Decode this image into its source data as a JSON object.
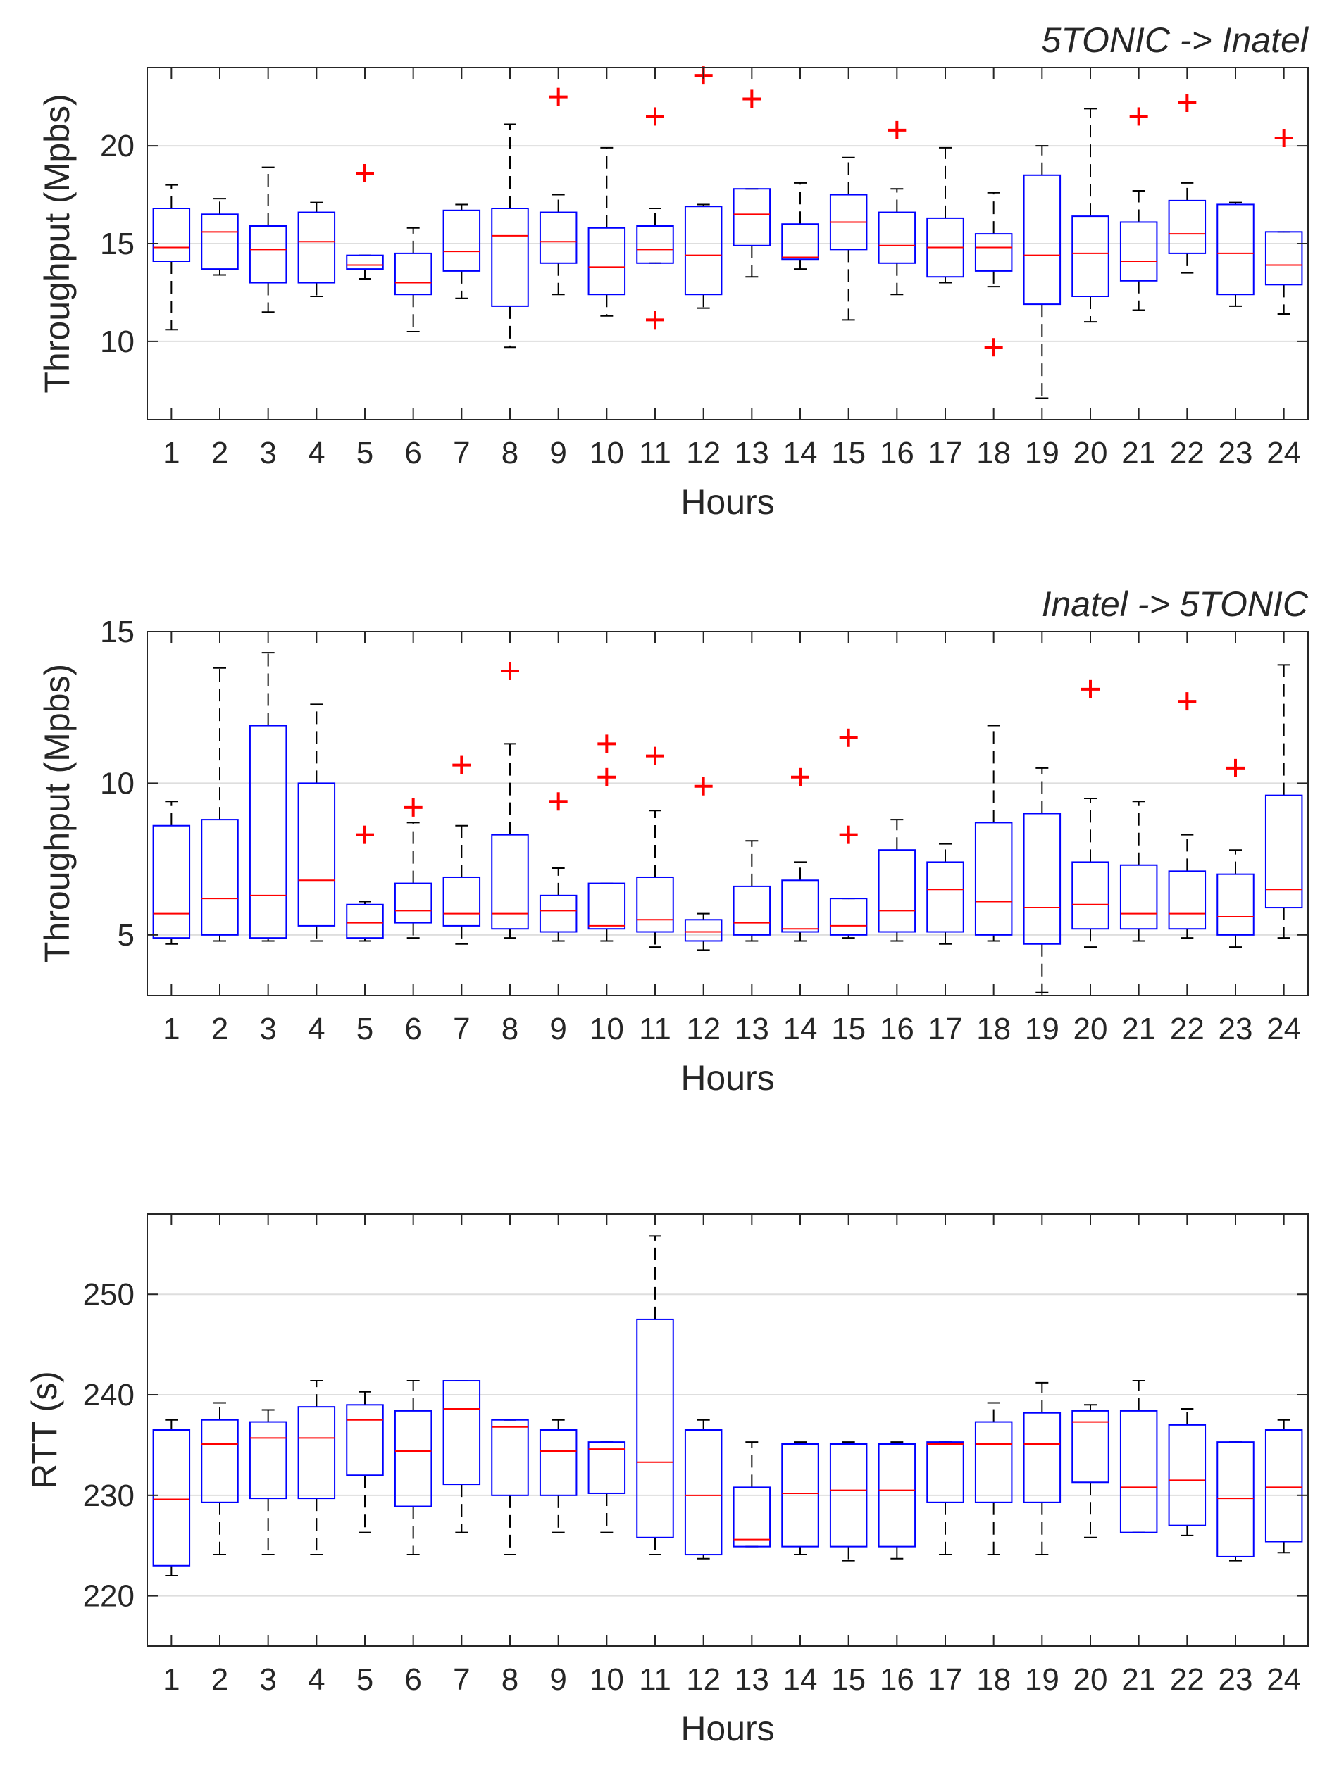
{
  "chart_data": [
    {
      "type": "box",
      "title": "5TONIC -> Inatel",
      "xlabel": "Hours",
      "ylabel": "Throughput (Mpbs)",
      "ylim": [
        6,
        24
      ],
      "yticks": [
        10,
        15,
        20
      ],
      "grid": true,
      "categories": [
        "1",
        "2",
        "3",
        "4",
        "5",
        "6",
        "7",
        "8",
        "9",
        "10",
        "11",
        "12",
        "13",
        "14",
        "15",
        "16",
        "17",
        "18",
        "19",
        "20",
        "21",
        "22",
        "23",
        "24"
      ],
      "boxes": [
        {
          "q1": 14.1,
          "median": 14.8,
          "q3": 16.8,
          "whisker_low": 10.6,
          "whisker_high": 18.0,
          "outliers": []
        },
        {
          "q1": 13.7,
          "median": 15.6,
          "q3": 16.5,
          "whisker_low": 13.4,
          "whisker_high": 17.3,
          "outliers": []
        },
        {
          "q1": 13.0,
          "median": 14.7,
          "q3": 15.9,
          "whisker_low": 11.5,
          "whisker_high": 18.9,
          "outliers": []
        },
        {
          "q1": 13.0,
          "median": 15.1,
          "q3": 16.6,
          "whisker_low": 12.3,
          "whisker_high": 17.1,
          "outliers": []
        },
        {
          "q1": 13.7,
          "median": 13.9,
          "q3": 14.4,
          "whisker_low": 13.2,
          "whisker_high": 14.4,
          "outliers": [
            18.6
          ]
        },
        {
          "q1": 12.4,
          "median": 13.0,
          "q3": 14.5,
          "whisker_low": 10.5,
          "whisker_high": 15.8,
          "outliers": []
        },
        {
          "q1": 13.6,
          "median": 14.6,
          "q3": 16.7,
          "whisker_low": 12.2,
          "whisker_high": 17.0,
          "outliers": []
        },
        {
          "q1": 11.8,
          "median": 15.4,
          "q3": 16.8,
          "whisker_low": 9.7,
          "whisker_high": 21.1,
          "outliers": []
        },
        {
          "q1": 14.0,
          "median": 15.1,
          "q3": 16.6,
          "whisker_low": 12.4,
          "whisker_high": 17.5,
          "outliers": [
            22.5
          ]
        },
        {
          "q1": 12.4,
          "median": 13.8,
          "q3": 15.8,
          "whisker_low": 11.3,
          "whisker_high": 19.9,
          "outliers": []
        },
        {
          "q1": 14.0,
          "median": 14.7,
          "q3": 15.9,
          "whisker_low": 14.0,
          "whisker_high": 16.8,
          "outliers": [
            21.5,
            11.1
          ]
        },
        {
          "q1": 12.4,
          "median": 14.4,
          "q3": 16.9,
          "whisker_low": 11.7,
          "whisker_high": 17.0,
          "outliers": [
            23.6
          ]
        },
        {
          "q1": 14.9,
          "median": 16.5,
          "q3": 17.8,
          "whisker_low": 13.3,
          "whisker_high": 17.8,
          "outliers": [
            22.4
          ]
        },
        {
          "q1": 14.2,
          "median": 14.3,
          "q3": 16.0,
          "whisker_low": 13.7,
          "whisker_high": 18.1,
          "outliers": []
        },
        {
          "q1": 14.7,
          "median": 16.1,
          "q3": 17.5,
          "whisker_low": 11.1,
          "whisker_high": 19.4,
          "outliers": []
        },
        {
          "q1": 14.0,
          "median": 14.9,
          "q3": 16.6,
          "whisker_low": 12.4,
          "whisker_high": 17.8,
          "outliers": [
            20.8
          ]
        },
        {
          "q1": 13.3,
          "median": 14.8,
          "q3": 16.3,
          "whisker_low": 13.0,
          "whisker_high": 19.9,
          "outliers": []
        },
        {
          "q1": 13.6,
          "median": 14.8,
          "q3": 15.5,
          "whisker_low": 12.8,
          "whisker_high": 17.6,
          "outliers": [
            9.7
          ]
        },
        {
          "q1": 11.9,
          "median": 14.4,
          "q3": 18.5,
          "whisker_low": 7.1,
          "whisker_high": 20.0,
          "outliers": []
        },
        {
          "q1": 12.3,
          "median": 14.5,
          "q3": 16.4,
          "whisker_low": 11.0,
          "whisker_high": 21.9,
          "outliers": []
        },
        {
          "q1": 13.1,
          "median": 14.1,
          "q3": 16.1,
          "whisker_low": 11.6,
          "whisker_high": 17.7,
          "outliers": [
            21.5
          ]
        },
        {
          "q1": 14.5,
          "median": 15.5,
          "q3": 17.2,
          "whisker_low": 13.5,
          "whisker_high": 18.1,
          "outliers": [
            22.2
          ]
        },
        {
          "q1": 12.4,
          "median": 14.5,
          "q3": 17.0,
          "whisker_low": 11.8,
          "whisker_high": 17.1,
          "outliers": []
        },
        {
          "q1": 12.9,
          "median": 13.9,
          "q3": 15.6,
          "whisker_low": 11.4,
          "whisker_high": 15.6,
          "outliers": [
            20.4
          ]
        }
      ]
    },
    {
      "type": "box",
      "title": "Inatel -> 5TONIC",
      "xlabel": "Hours",
      "ylabel": "Throughput (Mpbs)",
      "ylim": [
        3,
        15
      ],
      "yticks": [
        5,
        10,
        15
      ],
      "grid": true,
      "categories": [
        "1",
        "2",
        "3",
        "4",
        "5",
        "6",
        "7",
        "8",
        "9",
        "10",
        "11",
        "12",
        "13",
        "14",
        "15",
        "16",
        "17",
        "18",
        "19",
        "20",
        "21",
        "22",
        "23",
        "24"
      ],
      "boxes": [
        {
          "q1": 4.9,
          "median": 5.7,
          "q3": 8.6,
          "whisker_low": 4.7,
          "whisker_high": 9.4,
          "outliers": []
        },
        {
          "q1": 5.0,
          "median": 6.2,
          "q3": 8.8,
          "whisker_low": 4.8,
          "whisker_high": 13.8,
          "outliers": []
        },
        {
          "q1": 4.9,
          "median": 6.3,
          "q3": 11.9,
          "whisker_low": 4.8,
          "whisker_high": 14.3,
          "outliers": []
        },
        {
          "q1": 5.3,
          "median": 6.8,
          "q3": 10.0,
          "whisker_low": 4.8,
          "whisker_high": 12.6,
          "outliers": []
        },
        {
          "q1": 4.9,
          "median": 5.4,
          "q3": 6.0,
          "whisker_low": 4.8,
          "whisker_high": 6.1,
          "outliers": [
            8.3
          ]
        },
        {
          "q1": 5.4,
          "median": 5.8,
          "q3": 6.7,
          "whisker_low": 4.9,
          "whisker_high": 8.7,
          "outliers": [
            9.2
          ]
        },
        {
          "q1": 5.3,
          "median": 5.7,
          "q3": 6.9,
          "whisker_low": 4.7,
          "whisker_high": 8.6,
          "outliers": [
            10.6
          ]
        },
        {
          "q1": 5.2,
          "median": 5.7,
          "q3": 8.3,
          "whisker_low": 4.9,
          "whisker_high": 11.3,
          "outliers": [
            13.7
          ]
        },
        {
          "q1": 5.1,
          "median": 5.8,
          "q3": 6.3,
          "whisker_low": 4.8,
          "whisker_high": 7.2,
          "outliers": [
            9.4
          ]
        },
        {
          "q1": 5.2,
          "median": 5.3,
          "q3": 6.7,
          "whisker_low": 4.8,
          "whisker_high": 6.7,
          "outliers": [
            11.3,
            10.2
          ]
        },
        {
          "q1": 5.1,
          "median": 5.5,
          "q3": 6.9,
          "whisker_low": 4.6,
          "whisker_high": 9.1,
          "outliers": [
            10.9
          ]
        },
        {
          "q1": 4.8,
          "median": 5.1,
          "q3": 5.5,
          "whisker_low": 4.5,
          "whisker_high": 5.7,
          "outliers": [
            9.9
          ]
        },
        {
          "q1": 5.0,
          "median": 5.4,
          "q3": 6.6,
          "whisker_low": 4.8,
          "whisker_high": 8.1,
          "outliers": []
        },
        {
          "q1": 5.1,
          "median": 5.2,
          "q3": 6.8,
          "whisker_low": 4.8,
          "whisker_high": 7.4,
          "outliers": [
            10.2
          ]
        },
        {
          "q1": 5.0,
          "median": 5.3,
          "q3": 6.2,
          "whisker_low": 4.9,
          "whisker_high": 6.2,
          "outliers": [
            11.5,
            8.3
          ]
        },
        {
          "q1": 5.1,
          "median": 5.8,
          "q3": 7.8,
          "whisker_low": 4.8,
          "whisker_high": 8.8,
          "outliers": []
        },
        {
          "q1": 5.1,
          "median": 6.5,
          "q3": 7.4,
          "whisker_low": 4.7,
          "whisker_high": 8.0,
          "outliers": []
        },
        {
          "q1": 5.0,
          "median": 6.1,
          "q3": 8.7,
          "whisker_low": 4.8,
          "whisker_high": 11.9,
          "outliers": []
        },
        {
          "q1": 4.7,
          "median": 5.9,
          "q3": 9.0,
          "whisker_low": 3.1,
          "whisker_high": 10.5,
          "outliers": []
        },
        {
          "q1": 5.2,
          "median": 6.0,
          "q3": 7.4,
          "whisker_low": 4.6,
          "whisker_high": 9.5,
          "outliers": [
            13.1
          ]
        },
        {
          "q1": 5.2,
          "median": 5.7,
          "q3": 7.3,
          "whisker_low": 4.8,
          "whisker_high": 9.4,
          "outliers": []
        },
        {
          "q1": 5.2,
          "median": 5.7,
          "q3": 7.1,
          "whisker_low": 4.9,
          "whisker_high": 8.3,
          "outliers": [
            12.7
          ]
        },
        {
          "q1": 5.0,
          "median": 5.6,
          "q3": 7.0,
          "whisker_low": 4.6,
          "whisker_high": 7.8,
          "outliers": [
            10.5
          ]
        },
        {
          "q1": 5.9,
          "median": 6.5,
          "q3": 9.6,
          "whisker_low": 4.9,
          "whisker_high": 13.9,
          "outliers": []
        }
      ]
    },
    {
      "type": "box",
      "title": "",
      "xlabel": "Hours",
      "ylabel": "RTT (s)",
      "ylim": [
        215,
        258
      ],
      "yticks": [
        220,
        230,
        240,
        250
      ],
      "grid": true,
      "categories": [
        "1",
        "2",
        "3",
        "4",
        "5",
        "6",
        "7",
        "8",
        "9",
        "10",
        "11",
        "12",
        "13",
        "14",
        "15",
        "16",
        "17",
        "18",
        "19",
        "20",
        "21",
        "22",
        "23",
        "24"
      ],
      "boxes": [
        {
          "q1": 223.0,
          "median": 229.6,
          "q3": 236.5,
          "whisker_low": 222.0,
          "whisker_high": 237.5,
          "outliers": []
        },
        {
          "q1": 229.3,
          "median": 235.1,
          "q3": 237.5,
          "whisker_low": 224.1,
          "whisker_high": 239.2,
          "outliers": []
        },
        {
          "q1": 229.7,
          "median": 235.7,
          "q3": 237.3,
          "whisker_low": 224.1,
          "whisker_high": 238.5,
          "outliers": []
        },
        {
          "q1": 229.7,
          "median": 235.7,
          "q3": 238.8,
          "whisker_low": 224.1,
          "whisker_high": 241.4,
          "outliers": []
        },
        {
          "q1": 232.0,
          "median": 237.5,
          "q3": 239.0,
          "whisker_low": 226.3,
          "whisker_high": 240.3,
          "outliers": []
        },
        {
          "q1": 228.9,
          "median": 234.4,
          "q3": 238.4,
          "whisker_low": 224.1,
          "whisker_high": 241.4,
          "outliers": []
        },
        {
          "q1": 231.1,
          "median": 238.6,
          "q3": 241.4,
          "whisker_low": 226.3,
          "whisker_high": 241.4,
          "outliers": []
        },
        {
          "q1": 230.0,
          "median": 236.8,
          "q3": 237.5,
          "whisker_low": 224.1,
          "whisker_high": 237.5,
          "outliers": []
        },
        {
          "q1": 230.0,
          "median": 234.4,
          "q3": 236.5,
          "whisker_low": 226.3,
          "whisker_high": 237.5,
          "outliers": []
        },
        {
          "q1": 230.2,
          "median": 234.6,
          "q3": 235.3,
          "whisker_low": 226.3,
          "whisker_high": 235.3,
          "outliers": []
        },
        {
          "q1": 225.8,
          "median": 233.3,
          "q3": 247.5,
          "whisker_low": 224.1,
          "whisker_high": 255.8,
          "outliers": []
        },
        {
          "q1": 224.1,
          "median": 230.0,
          "q3": 236.5,
          "whisker_low": 223.7,
          "whisker_high": 237.5,
          "outliers": []
        },
        {
          "q1": 224.9,
          "median": 225.6,
          "q3": 230.8,
          "whisker_low": 224.9,
          "whisker_high": 235.3,
          "outliers": []
        },
        {
          "q1": 224.9,
          "median": 230.2,
          "q3": 235.1,
          "whisker_low": 224.1,
          "whisker_high": 235.3,
          "outliers": []
        },
        {
          "q1": 224.9,
          "median": 230.5,
          "q3": 235.1,
          "whisker_low": 223.5,
          "whisker_high": 235.3,
          "outliers": []
        },
        {
          "q1": 224.9,
          "median": 230.5,
          "q3": 235.1,
          "whisker_low": 223.7,
          "whisker_high": 235.3,
          "outliers": []
        },
        {
          "q1": 229.3,
          "median": 235.1,
          "q3": 235.3,
          "whisker_low": 224.1,
          "whisker_high": 235.3,
          "outliers": []
        },
        {
          "q1": 229.3,
          "median": 235.1,
          "q3": 237.3,
          "whisker_low": 224.1,
          "whisker_high": 239.2,
          "outliers": []
        },
        {
          "q1": 229.3,
          "median": 235.1,
          "q3": 238.2,
          "whisker_low": 224.1,
          "whisker_high": 241.2,
          "outliers": []
        },
        {
          "q1": 231.3,
          "median": 237.3,
          "q3": 238.4,
          "whisker_low": 225.8,
          "whisker_high": 239.0,
          "outliers": []
        },
        {
          "q1": 226.3,
          "median": 230.8,
          "q3": 238.4,
          "whisker_low": 226.3,
          "whisker_high": 241.4,
          "outliers": []
        },
        {
          "q1": 227.0,
          "median": 231.5,
          "q3": 237.0,
          "whisker_low": 226.0,
          "whisker_high": 238.6,
          "outliers": []
        },
        {
          "q1": 223.9,
          "median": 229.7,
          "q3": 235.3,
          "whisker_low": 223.5,
          "whisker_high": 235.3,
          "outliers": []
        },
        {
          "q1": 225.4,
          "median": 230.8,
          "q3": 236.5,
          "whisker_low": 224.3,
          "whisker_high": 237.5,
          "outliers": []
        }
      ]
    }
  ],
  "colors": {
    "box": "#0000ff",
    "median": "#ff0000",
    "whisker": "#000000",
    "outlier": "#ff0000",
    "grid": "#dedede",
    "axis": "#262626"
  }
}
